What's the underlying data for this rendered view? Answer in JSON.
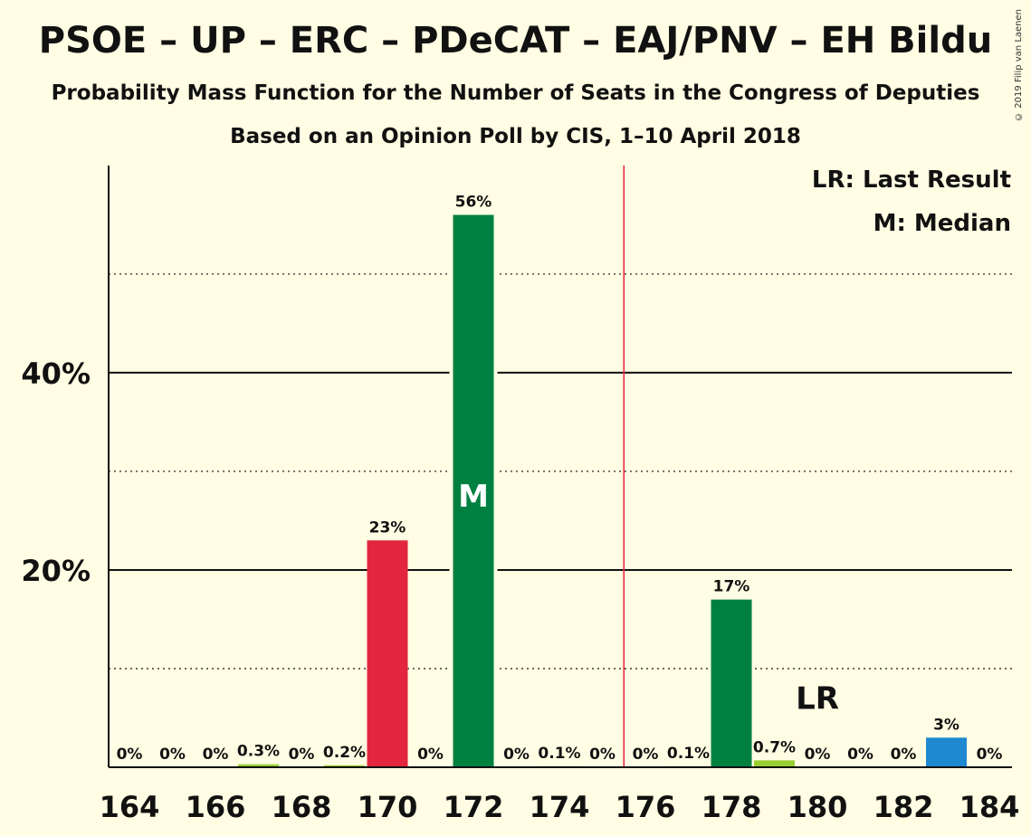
{
  "chart_data": {
    "type": "bar",
    "title": "PSOE – UP – ERC – PDeCAT – EAJ/PNV – EH Bildu",
    "subtitle_1": "Probability Mass Function for the Number of Seats in the Congress of Deputies",
    "subtitle_2": "Based on an Opinion Poll by CIS, 1–10 April 2018",
    "copyright": "© 2019 Filip van Laenen",
    "legend": {
      "lr": "LR: Last Result",
      "m": "M: Median",
      "placement": "top-right"
    },
    "x": [
      164,
      165,
      166,
      167,
      168,
      169,
      170,
      171,
      172,
      173,
      174,
      175,
      176,
      177,
      178,
      179,
      180,
      181,
      182,
      183,
      184
    ],
    "values": [
      0,
      0,
      0,
      0.3,
      0,
      0.2,
      23,
      0,
      56,
      0,
      0.1,
      0,
      0,
      0.1,
      17,
      0.7,
      0,
      0,
      0,
      3,
      0
    ],
    "labels": [
      "0%",
      "0%",
      "0%",
      "0.3%",
      "0%",
      "0.2%",
      "23%",
      "0%",
      "56%",
      "0%",
      "0.1%",
      "0%",
      "0%",
      "0.1%",
      "17%",
      "0.7%",
      "0%",
      "0%",
      "0%",
      "3%",
      "0%"
    ],
    "bar_colors": [
      "#008040",
      "#008040",
      "#008040",
      "#9ACD32",
      "#008040",
      "#9ACD32",
      "#E3263E",
      "#008040",
      "#008040",
      "#008040",
      "#008040",
      "#008040",
      "#008040",
      "#008040",
      "#008040",
      "#9ACD32",
      "#008040",
      "#008040",
      "#008040",
      "#1E88D0",
      "#008040"
    ],
    "x_tick_labels": [
      "164",
      "166",
      "168",
      "170",
      "172",
      "174",
      "176",
      "178",
      "180",
      "182",
      "184"
    ],
    "x_tick_values": [
      164,
      166,
      168,
      170,
      172,
      174,
      176,
      178,
      180,
      182,
      184
    ],
    "y_tick_labels": [
      "20%",
      "40%"
    ],
    "y_tick_values": [
      20,
      40
    ],
    "y_dotted_values": [
      10,
      30,
      50
    ],
    "ylim": [
      0,
      61
    ],
    "majority_line_x": 175.5,
    "median": {
      "x": 172,
      "label": "M",
      "y_value": 27.5
    },
    "last_result": {
      "x": 180,
      "label": "LR",
      "y_value": 7
    },
    "grid": true,
    "colors": {
      "background": "#FFFDE3",
      "majority_line": "#E3263E",
      "text": "#111111"
    }
  }
}
